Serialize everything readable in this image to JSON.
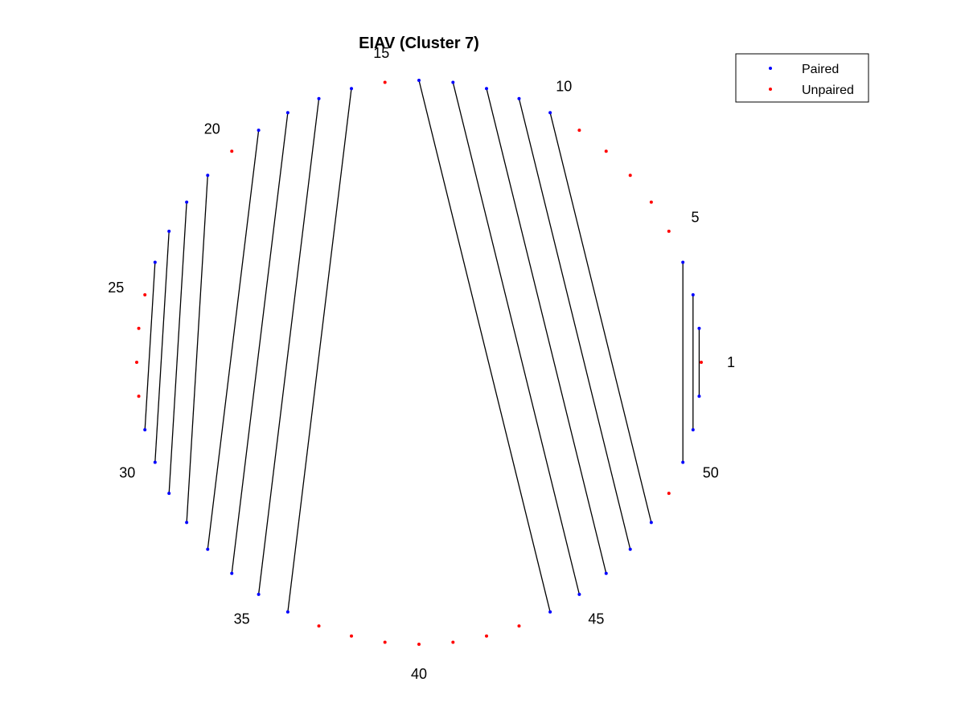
{
  "chart_data": {
    "type": "scatter",
    "title": "EIAV (Cluster 7)",
    "n_positions": 52,
    "start_angle_deg": 0,
    "direction": "counterclockwise",
    "position_labels": [
      1,
      5,
      10,
      15,
      20,
      25,
      30,
      35,
      40,
      45,
      50
    ],
    "pairs": [
      [
        2,
        52
      ],
      [
        3,
        51
      ],
      [
        4,
        50
      ],
      [
        10,
        48
      ],
      [
        11,
        47
      ],
      [
        12,
        46
      ],
      [
        13,
        45
      ],
      [
        14,
        44
      ],
      [
        16,
        36
      ],
      [
        17,
        35
      ],
      [
        18,
        34
      ],
      [
        19,
        33
      ],
      [
        21,
        32
      ],
      [
        22,
        31
      ],
      [
        23,
        30
      ],
      [
        24,
        29
      ]
    ],
    "series": [
      {
        "name": "Paired",
        "color": "#0000ff",
        "positions": [
          2,
          3,
          4,
          10,
          11,
          12,
          13,
          14,
          16,
          17,
          18,
          19,
          21,
          22,
          23,
          24,
          29,
          30,
          31,
          32,
          33,
          34,
          35,
          36,
          44,
          45,
          46,
          47,
          48,
          50,
          51,
          52
        ]
      },
      {
        "name": "Unpaired",
        "color": "#ff0000",
        "positions": [
          1,
          5,
          6,
          7,
          8,
          9,
          15,
          20,
          25,
          26,
          27,
          28,
          37,
          38,
          39,
          40,
          41,
          42,
          43,
          49
        ]
      }
    ],
    "line_color": "#000000",
    "legend": "top-right",
    "grid": false
  }
}
